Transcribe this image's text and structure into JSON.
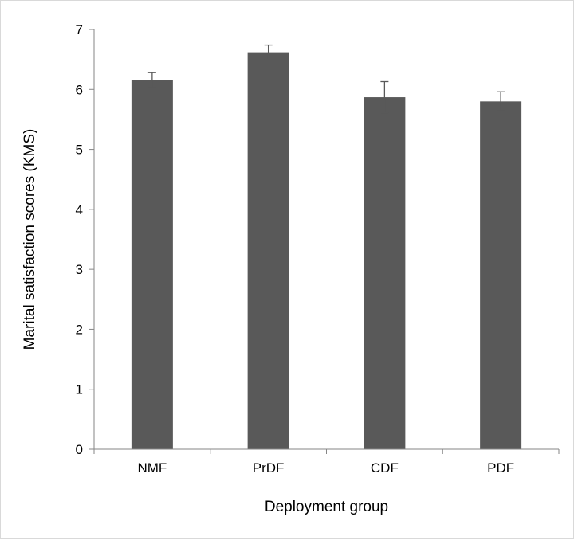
{
  "chart_data": {
    "type": "bar",
    "categories": [
      "NMF",
      "PrDF",
      "CDF",
      "PDF"
    ],
    "values": [
      6.15,
      6.62,
      5.87,
      5.8
    ],
    "error": [
      {
        "low": 6.03,
        "high": 6.28
      },
      {
        "low": 6.5,
        "high": 6.74
      },
      {
        "low": 5.61,
        "high": 6.13
      },
      {
        "low": 5.64,
        "high": 5.96
      }
    ],
    "title": "",
    "xlabel": "Deployment group",
    "ylabel": "Marital satisfaction scores (KMS)",
    "ylim": [
      0,
      7
    ],
    "yticks": [
      0,
      1,
      2,
      3,
      4,
      5,
      6,
      7
    ],
    "grid": false,
    "bar_color": "#595959",
    "axis_color": "#868686",
    "error_bar_color": "#595959"
  }
}
